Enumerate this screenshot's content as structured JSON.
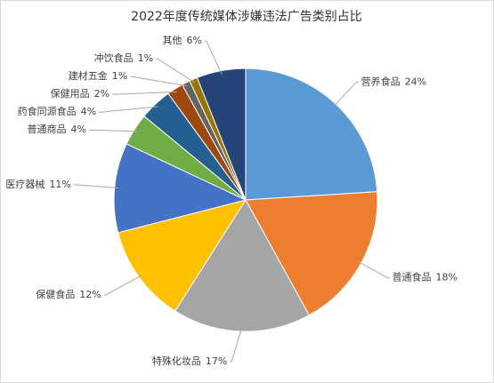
{
  "chart_data": {
    "type": "pie",
    "title": "2022年度传统媒体涉嫌违法广告类别占比",
    "categories": [
      "营养食品",
      "普通食品",
      "特殊化妆品",
      "保健食品",
      "医疗器械",
      "普通商品",
      "药食同源食品",
      "保健用品",
      "建材五金",
      "冲饮食品",
      "其他"
    ],
    "values": [
      24,
      18,
      17,
      12,
      11,
      4,
      4,
      2,
      1,
      1,
      6
    ],
    "value_labels": [
      "24%",
      "18%",
      "17%",
      "12%",
      "11%",
      "4%",
      "4%",
      "2%",
      "1%",
      "1%",
      "6%"
    ],
    "colors": [
      "#5b9bd5",
      "#ed7d31",
      "#a5a5a5",
      "#ffc000",
      "#4472c4",
      "#70ad47",
      "#255e91",
      "#9e480e",
      "#636363",
      "#997300",
      "#264478"
    ]
  }
}
